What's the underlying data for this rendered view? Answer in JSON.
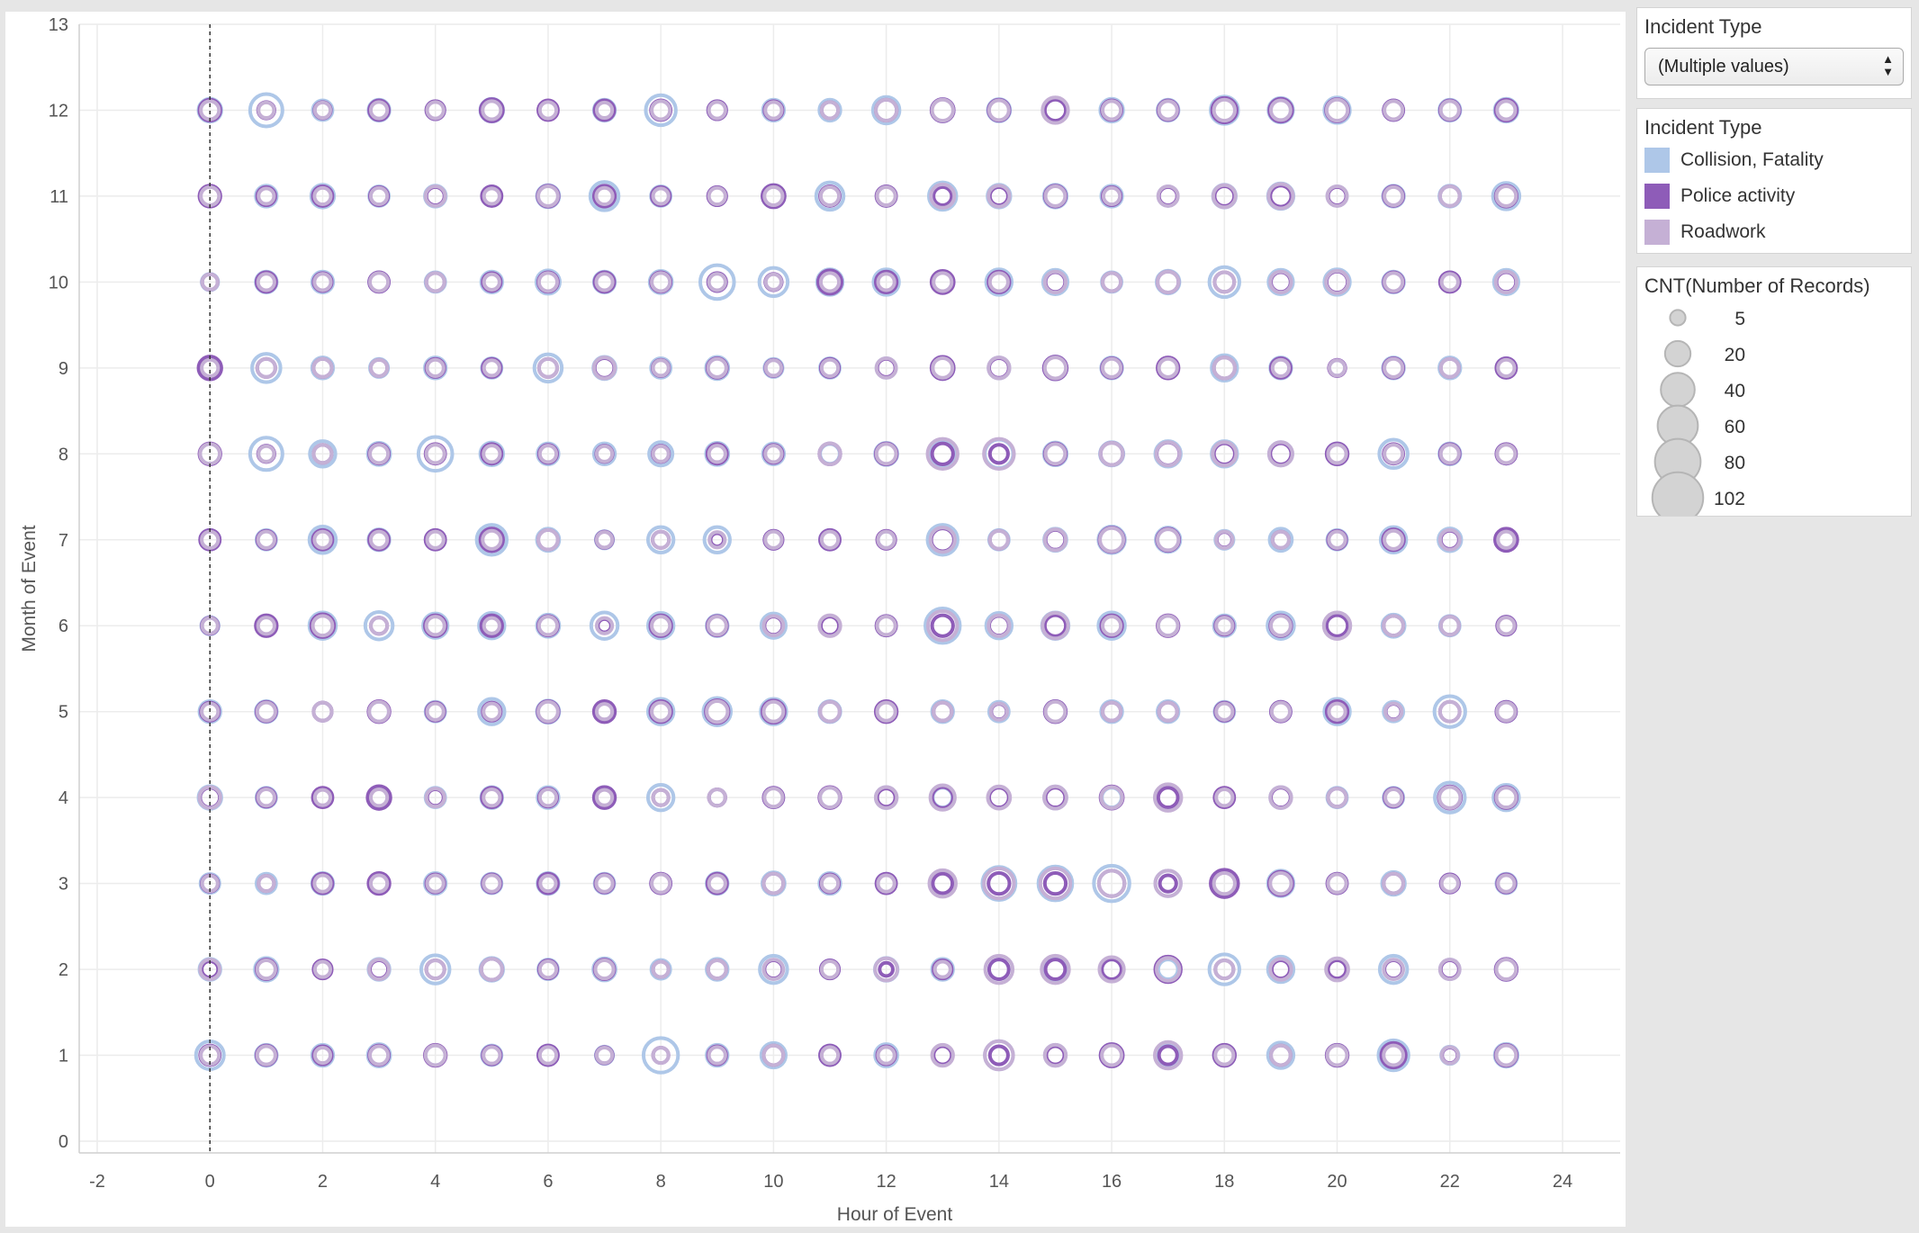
{
  "filter": {
    "title": "Incident Type",
    "selected": "(Multiple values)"
  },
  "color_legend": {
    "title": "Incident Type",
    "items": [
      {
        "label": "Collision, Fatality",
        "color": "#aec7e8"
      },
      {
        "label": "Police activity",
        "color": "#8e5cb8"
      },
      {
        "label": "Roadwork",
        "color": "#c5b0d5"
      }
    ]
  },
  "size_legend": {
    "title": "CNT(Number of Records)",
    "items": [
      "5",
      "20",
      "40",
      "60",
      "80",
      "102"
    ]
  },
  "chart_data": {
    "type": "scatter",
    "xlabel": "Hour of Event",
    "ylabel": "Month of Event",
    "xlim": [
      -2,
      24
    ],
    "ylim": [
      0,
      13
    ],
    "xticks": [
      -2,
      0,
      2,
      4,
      6,
      8,
      10,
      12,
      14,
      16,
      18,
      20,
      22,
      24
    ],
    "yticks": [
      0,
      1,
      2,
      3,
      4,
      5,
      6,
      7,
      8,
      9,
      10,
      11,
      12,
      13
    ],
    "reference_line_x": 0,
    "grid": true,
    "size_field": "CNT(Number of Records)",
    "series": [
      {
        "name": "Collision, Fatality",
        "color": "#aec7e8",
        "values_by_month_hour": [
          [
            25,
            12,
            12,
            14,
            10,
            10,
            10,
            7,
            42,
            12,
            18,
            10,
            14,
            10,
            26,
            12,
            14,
            10,
            12,
            20,
            12,
            30,
            7,
            15
          ],
          [
            12,
            15,
            6,
            12,
            26,
            15,
            10,
            14,
            9,
            12,
            24,
            8,
            15,
            12,
            10,
            12,
            10,
            10,
            30,
            20,
            12,
            24,
            10,
            12
          ],
          [
            9,
            10,
            12,
            10,
            12,
            10,
            12,
            10,
            10,
            12,
            14,
            12,
            10,
            12,
            38,
            40,
            45,
            20,
            20,
            20,
            10,
            15,
            8,
            10
          ],
          [
            15,
            10,
            8,
            10,
            10,
            12,
            12,
            12,
            20,
            6,
            10,
            10,
            12,
            10,
            12,
            14,
            10,
            12,
            8,
            12,
            10,
            10,
            30,
            20
          ],
          [
            12,
            12,
            8,
            10,
            10,
            20,
            14,
            8,
            20,
            24,
            20,
            12,
            10,
            12,
            10,
            12,
            12,
            12,
            10,
            10,
            20,
            10,
            32,
            10
          ],
          [
            7,
            10,
            22,
            24,
            18,
            20,
            14,
            22,
            20,
            12,
            18,
            10,
            10,
            42,
            20,
            22,
            22,
            10,
            12,
            22,
            18,
            14,
            10,
            8
          ],
          [
            10,
            10,
            22,
            12,
            10,
            30,
            14,
            7,
            20,
            20,
            8,
            10,
            6,
            30,
            10,
            14,
            22,
            18,
            8,
            14,
            10,
            20,
            15,
            10
          ],
          [
            10,
            36,
            20,
            14,
            40,
            15,
            12,
            12,
            16,
            14,
            12,
            10,
            14,
            18,
            26,
            15,
            16,
            20,
            20,
            16,
            12,
            26,
            12,
            10
          ],
          [
            12,
            26,
            12,
            8,
            12,
            10,
            24,
            14,
            10,
            14,
            8,
            10,
            10,
            14,
            12,
            15,
            12,
            10,
            20,
            12,
            5,
            12,
            12,
            10
          ],
          [
            6,
            12,
            12,
            10,
            10,
            12,
            16,
            12,
            14,
            40,
            26,
            20,
            20,
            12,
            20,
            18,
            10,
            15,
            30,
            18,
            20,
            12,
            10,
            18
          ],
          [
            10,
            12,
            15,
            10,
            12,
            10,
            14,
            26,
            10,
            8,
            14,
            24,
            10,
            24,
            15,
            15,
            12,
            10,
            15,
            20,
            10,
            12,
            12,
            22
          ],
          [
            15,
            36,
            10,
            12,
            8,
            15,
            8,
            12,
            30,
            8,
            12,
            12,
            22,
            14,
            14,
            18,
            15,
            12,
            24,
            18,
            20,
            10,
            12,
            15
          ]
        ]
      },
      {
        "name": "Police activity",
        "color": "#8e5cb8",
        "values_by_month_hour": [
          [
            10,
            10,
            8,
            10,
            12,
            8,
            10,
            6,
            5,
            8,
            10,
            10,
            8,
            8,
            8,
            8,
            14,
            8,
            12,
            10,
            12,
            18,
            5,
            12
          ],
          [
            6,
            10,
            8,
            8,
            8,
            12,
            8,
            10,
            5,
            8,
            8,
            8,
            3,
            8,
            10,
            10,
            10,
            20,
            8,
            8,
            8,
            8,
            8,
            12
          ],
          [
            6,
            5,
            10,
            12,
            8,
            8,
            10,
            8,
            10,
            10,
            10,
            8,
            10,
            10,
            12,
            12,
            20,
            6,
            24,
            16,
            10,
            10,
            8,
            8
          ],
          [
            10,
            8,
            10,
            15,
            6,
            10,
            8,
            12,
            5,
            6,
            10,
            12,
            8,
            12,
            10,
            10,
            14,
            10,
            10,
            10,
            8,
            8,
            14,
            12
          ],
          [
            8,
            10,
            8,
            12,
            8,
            8,
            12,
            12,
            12,
            15,
            14,
            10,
            12,
            8,
            5,
            12,
            8,
            8,
            8,
            10,
            12,
            5,
            10,
            10
          ],
          [
            6,
            12,
            15,
            6,
            12,
            12,
            10,
            3,
            12,
            10,
            8,
            8,
            10,
            12,
            10,
            12,
            12,
            12,
            8,
            12,
            12,
            10,
            8,
            8
          ],
          [
            10,
            8,
            10,
            10,
            10,
            15,
            10,
            6,
            6,
            3,
            8,
            10,
            8,
            15,
            8,
            10,
            18,
            14,
            5,
            6,
            8,
            12,
            8,
            14
          ],
          [
            12,
            6,
            8,
            10,
            10,
            10,
            8,
            6,
            6,
            10,
            8,
            12,
            12,
            12,
            8,
            12,
            14,
            15,
            12,
            12,
            12,
            10,
            10,
            10
          ],
          [
            15,
            8,
            8,
            6,
            8,
            8,
            8,
            10,
            6,
            10,
            6,
            8,
            8,
            14,
            10,
            15,
            10,
            12,
            12,
            10,
            6,
            10,
            8,
            10
          ],
          [
            5,
            10,
            8,
            10,
            8,
            8,
            10,
            10,
            10,
            8,
            6,
            16,
            12,
            14,
            12,
            10,
            8,
            12,
            10,
            10,
            12,
            10,
            10,
            10
          ],
          [
            12,
            8,
            10,
            8,
            8,
            10,
            12,
            12,
            8,
            8,
            14,
            10,
            10,
            8,
            8,
            12,
            8,
            8,
            10,
            12,
            8,
            10,
            10,
            12
          ],
          [
            12,
            6,
            6,
            10,
            8,
            14,
            10,
            10,
            10,
            8,
            8,
            6,
            12,
            14,
            12,
            12,
            10,
            10,
            18,
            15,
            14,
            10,
            10,
            12
          ]
        ]
      },
      {
        "name": "Roadwork",
        "color": "#c5b0d5",
        "values_by_month_hour": [
          [
            8,
            8,
            5,
            8,
            10,
            6,
            6,
            5,
            5,
            6,
            10,
            6,
            6,
            12,
            26,
            12,
            10,
            22,
            8,
            10,
            10,
            10,
            6,
            10
          ],
          [
            10,
            8,
            5,
            10,
            8,
            12,
            6,
            8,
            5,
            8,
            10,
            6,
            14,
            5,
            24,
            24,
            18,
            15,
            8,
            12,
            14,
            10,
            10,
            10
          ],
          [
            5,
            5,
            6,
            6,
            6,
            6,
            5,
            6,
            8,
            6,
            10,
            6,
            6,
            22,
            30,
            30,
            20,
            20,
            12,
            12,
            8,
            10,
            6,
            6
          ],
          [
            12,
            6,
            5,
            6,
            8,
            6,
            6,
            5,
            5,
            6,
            8,
            10,
            12,
            18,
            14,
            14,
            12,
            22,
            6,
            12,
            8,
            6,
            12,
            10
          ],
          [
            6,
            8,
            8,
            10,
            6,
            6,
            10,
            5,
            8,
            12,
            10,
            10,
            8,
            8,
            6,
            10,
            8,
            8,
            6,
            8,
            6,
            6,
            10,
            8
          ],
          [
            5,
            6,
            10,
            6,
            8,
            5,
            8,
            5,
            8,
            8,
            10,
            12,
            8,
            28,
            12,
            20,
            8,
            10,
            6,
            10,
            22,
            10,
            8,
            6
          ],
          [
            6,
            6,
            6,
            6,
            6,
            8,
            10,
            5,
            6,
            5,
            6,
            6,
            6,
            18,
            8,
            12,
            16,
            12,
            6,
            6,
            6,
            8,
            10,
            6
          ],
          [
            10,
            5,
            8,
            8,
            8,
            6,
            6,
            5,
            5,
            6,
            6,
            12,
            10,
            30,
            30,
            10,
            14,
            16,
            16,
            16,
            8,
            8,
            8,
            8
          ],
          [
            6,
            8,
            8,
            6,
            6,
            5,
            8,
            12,
            5,
            8,
            5,
            6,
            10,
            10,
            12,
            12,
            8,
            8,
            12,
            6,
            5,
            8,
            8,
            6
          ],
          [
            5,
            6,
            6,
            8,
            8,
            5,
            8,
            6,
            8,
            6,
            5,
            8,
            6,
            8,
            8,
            12,
            8,
            12,
            10,
            12,
            14,
            8,
            6,
            12
          ],
          [
            8,
            5,
            6,
            6,
            10,
            5,
            10,
            6,
            5,
            6,
            8,
            8,
            8,
            16,
            12,
            10,
            6,
            10,
            14,
            18,
            10,
            8,
            10,
            10
          ],
          [
            8,
            5,
            5,
            6,
            6,
            8,
            6,
            5,
            8,
            6,
            6,
            6,
            12,
            12,
            10,
            20,
            8,
            8,
            12,
            10,
            12,
            8,
            8,
            8
          ]
        ]
      }
    ]
  }
}
